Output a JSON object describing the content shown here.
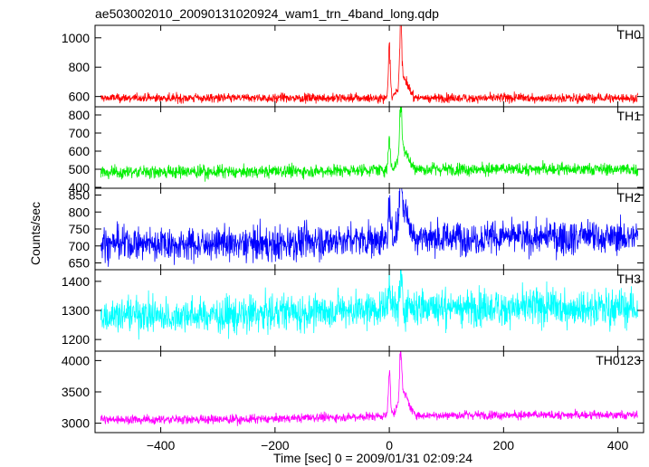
{
  "chart_data": {
    "type": "line",
    "title": "ae503002010_20090131020924_wam1_trn_4band_long.qdp",
    "xlabel": "Time [sec] 0 = 2009/01/31 02:09:24",
    "ylabel": "Counts/sec",
    "xlim": [
      -515,
      445
    ],
    "xticks": [
      -400,
      -200,
      0,
      200,
      400
    ],
    "xtick_labels": [
      "−400",
      "−200",
      "0",
      "200",
      "400"
    ],
    "grid": false,
    "panels": [
      {
        "name": "TH0",
        "color": "#ff0000",
        "ylim": [
          530,
          1085
        ],
        "yticks": [
          600,
          800,
          1000
        ],
        "ytick_labels": [
          "600",
          "800",
          "1000"
        ],
        "baseline": 590,
        "noise": 22,
        "trend": 0,
        "events": [
          {
            "x": 0,
            "y": 1040
          },
          {
            "x": 20,
            "y": 1085
          },
          {
            "x": 25,
            "y": 720
          }
        ]
      },
      {
        "name": "TH1",
        "color": "#00ee00",
        "ylim": [
          395,
          845
        ],
        "yticks": [
          400,
          500,
          600,
          700,
          800
        ],
        "ytick_labels": [
          "400",
          "500",
          "600",
          "700",
          "800"
        ],
        "baseline": 485,
        "noise": 25,
        "trend": 15,
        "events": [
          {
            "x": 0,
            "y": 690
          },
          {
            "x": 20,
            "y": 845
          },
          {
            "x": 25,
            "y": 600
          }
        ]
      },
      {
        "name": "TH2",
        "color": "#0000ff",
        "ylim": [
          630,
          870
        ],
        "yticks": [
          650,
          700,
          750,
          800,
          850
        ],
        "ytick_labels": [
          "650",
          "700",
          "750",
          "800",
          "850"
        ],
        "baseline": 705,
        "noise": 35,
        "trend": 20,
        "events": [
          {
            "x": 0,
            "y": 820
          },
          {
            "x": 20,
            "y": 870
          },
          {
            "x": 25,
            "y": 790
          }
        ]
      },
      {
        "name": "TH3",
        "color": "#00ffff",
        "ylim": [
          1160,
          1440
        ],
        "yticks": [
          1200,
          1300,
          1400
        ],
        "ytick_labels": [
          "1200",
          "1300",
          "1400"
        ],
        "baseline": 1285,
        "noise": 45,
        "trend": 25,
        "events": [
          {
            "x": 0,
            "y": 1420
          },
          {
            "x": 20,
            "y": 1440
          }
        ]
      },
      {
        "name": "TH0123",
        "color": "#ff00ff",
        "ylim": [
          2850,
          4150
        ],
        "yticks": [
          3000,
          3500,
          4000
        ],
        "ytick_labels": [
          "3000",
          "3500",
          "4000"
        ],
        "baseline": 3060,
        "noise": 50,
        "trend": 70,
        "events": [
          {
            "x": 0,
            "y": 3950
          },
          {
            "x": 20,
            "y": 4150
          },
          {
            "x": 25,
            "y": 3400
          }
        ]
      }
    ]
  }
}
